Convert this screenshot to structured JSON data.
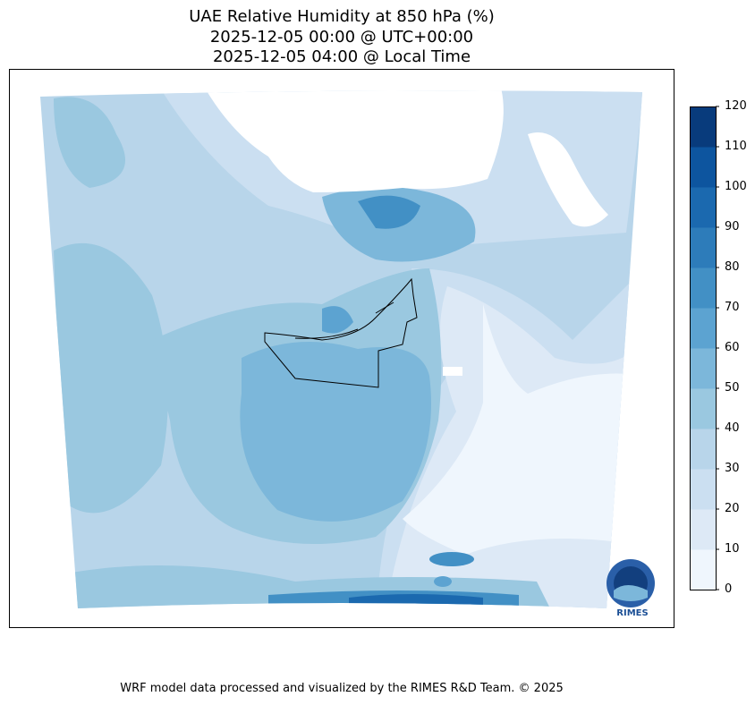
{
  "title": {
    "line1": "UAE Relative Humidity at 850 hPa (%)",
    "line2": "2025-12-05 00:00 @ UTC+00:00",
    "line3": "2025-12-05 04:00 @ Local Time"
  },
  "colorbar": {
    "ticks": [
      "0",
      "10",
      "20",
      "30",
      "40",
      "50",
      "60",
      "70",
      "80",
      "90",
      "100",
      "110",
      "120"
    ],
    "colors": [
      "#eff6fd",
      "#dde9f6",
      "#cbdff1",
      "#b8d5ea",
      "#9ac8e0",
      "#7cb7da",
      "#5ca3d1",
      "#4290c5",
      "#2d7cba",
      "#1b69af",
      "#0d559f",
      "#083b7c"
    ]
  },
  "logo": {
    "text": "RIMES"
  },
  "footer": "WRF model data processed and visualized by the RIMES R&D Team. © 2025"
}
